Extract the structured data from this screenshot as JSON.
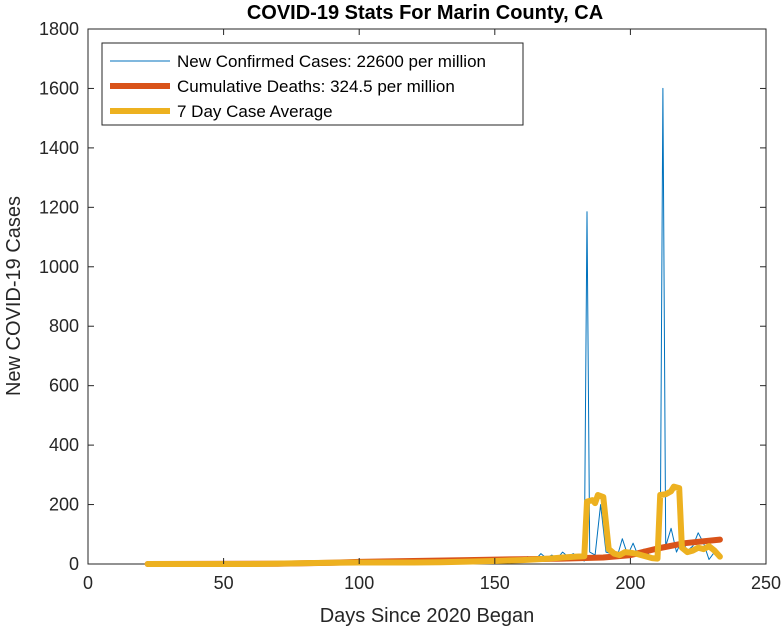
{
  "chart_data": {
    "type": "line",
    "title": "COVID-19 Stats For Marin County, CA",
    "xlabel": "Days Since 2020 Began",
    "ylabel": "New COVID-19 Cases",
    "xlim": [
      0,
      250
    ],
    "ylim": [
      0,
      1800
    ],
    "xticks": [
      0,
      50,
      100,
      150,
      200,
      250
    ],
    "yticks": [
      0,
      200,
      400,
      600,
      800,
      1000,
      1200,
      1400,
      1600,
      1800
    ],
    "grid": false,
    "legend_position": "top-left",
    "series": [
      {
        "name": "New Confirmed Cases: 22600 per million",
        "color": "#0072BD",
        "line_weight": "thin",
        "points": [
          [
            22,
            0
          ],
          [
            40,
            0
          ],
          [
            60,
            0
          ],
          [
            75,
            1
          ],
          [
            80,
            3
          ],
          [
            85,
            2
          ],
          [
            90,
            5
          ],
          [
            95,
            3
          ],
          [
            100,
            8
          ],
          [
            105,
            4
          ],
          [
            110,
            6
          ],
          [
            115,
            3
          ],
          [
            120,
            5
          ],
          [
            125,
            4
          ],
          [
            130,
            6
          ],
          [
            135,
            3
          ],
          [
            140,
            8
          ],
          [
            145,
            5
          ],
          [
            148,
            14
          ],
          [
            150,
            6
          ],
          [
            152,
            18
          ],
          [
            155,
            10
          ],
          [
            158,
            22
          ],
          [
            160,
            12
          ],
          [
            162,
            25
          ],
          [
            165,
            15
          ],
          [
            167,
            35
          ],
          [
            169,
            20
          ],
          [
            171,
            30
          ],
          [
            173,
            18
          ],
          [
            175,
            40
          ],
          [
            177,
            25
          ],
          [
            179,
            35
          ],
          [
            181,
            20
          ],
          [
            183,
            10
          ],
          [
            184,
            1185
          ],
          [
            185,
            40
          ],
          [
            187,
            30
          ],
          [
            189,
            200
          ],
          [
            191,
            40
          ],
          [
            193,
            35
          ],
          [
            195,
            20
          ],
          [
            197,
            85
          ],
          [
            199,
            30
          ],
          [
            201,
            70
          ],
          [
            203,
            25
          ],
          [
            205,
            50
          ],
          [
            207,
            30
          ],
          [
            209,
            20
          ],
          [
            211,
            45
          ],
          [
            212,
            1600
          ],
          [
            213,
            60
          ],
          [
            215,
            120
          ],
          [
            217,
            40
          ],
          [
            219,
            80
          ],
          [
            221,
            45
          ],
          [
            223,
            60
          ],
          [
            225,
            105
          ],
          [
            227,
            70
          ],
          [
            229,
            15
          ],
          [
            231,
            40
          ],
          [
            233,
            20
          ]
        ]
      },
      {
        "name": "Cumulative Deaths: 324.5 per million",
        "color": "#D95319",
        "line_weight": "thick",
        "points": [
          [
            22,
            0
          ],
          [
            70,
            1
          ],
          [
            90,
            4
          ],
          [
            100,
            7
          ],
          [
            120,
            10
          ],
          [
            140,
            13
          ],
          [
            160,
            16
          ],
          [
            175,
            18
          ],
          [
            190,
            22
          ],
          [
            200,
            30
          ],
          [
            210,
            52
          ],
          [
            220,
            70
          ],
          [
            233,
            82
          ]
        ]
      },
      {
        "name": "7 Day Case Average",
        "color": "#EDB120",
        "line_weight": "thick",
        "points": [
          [
            22,
            0
          ],
          [
            60,
            0
          ],
          [
            75,
            2
          ],
          [
            80,
            3
          ],
          [
            90,
            4
          ],
          [
            100,
            5
          ],
          [
            110,
            5
          ],
          [
            120,
            5
          ],
          [
            130,
            6
          ],
          [
            140,
            8
          ],
          [
            150,
            10
          ],
          [
            160,
            13
          ],
          [
            170,
            18
          ],
          [
            175,
            22
          ],
          [
            180,
            25
          ],
          [
            183,
            26
          ],
          [
            184,
            210
          ],
          [
            186,
            215
          ],
          [
            187,
            205
          ],
          [
            188,
            232
          ],
          [
            190,
            225
          ],
          [
            192,
            50
          ],
          [
            194,
            35
          ],
          [
            196,
            30
          ],
          [
            198,
            40
          ],
          [
            200,
            38
          ],
          [
            202,
            35
          ],
          [
            204,
            30
          ],
          [
            206,
            25
          ],
          [
            208,
            20
          ],
          [
            210,
            18
          ],
          [
            211,
            232
          ],
          [
            213,
            235
          ],
          [
            215,
            245
          ],
          [
            216,
            260
          ],
          [
            218,
            255
          ],
          [
            219,
            55
          ],
          [
            221,
            40
          ],
          [
            223,
            45
          ],
          [
            225,
            55
          ],
          [
            227,
            50
          ],
          [
            229,
            60
          ],
          [
            231,
            45
          ],
          [
            233,
            25
          ]
        ]
      }
    ]
  }
}
